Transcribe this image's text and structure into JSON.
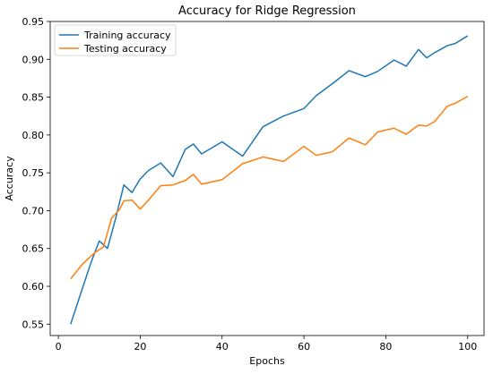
{
  "chart_data": {
    "type": "line",
    "title": "Accuracy for Ridge Regression",
    "xlabel": "Epochs",
    "ylabel": "Accuracy",
    "xlim": [
      -2,
      104
    ],
    "ylim": [
      0.535,
      0.95
    ],
    "x_ticks": [
      0,
      20,
      40,
      60,
      80,
      100
    ],
    "y_ticks": [
      0.55,
      0.6,
      0.65,
      0.7,
      0.75,
      0.8,
      0.85,
      0.9,
      0.95
    ],
    "legend_position": "top-left",
    "grid": false,
    "series": [
      {
        "name": "Training accuracy",
        "color": "#1f77b4",
        "x": [
          3,
          5,
          8,
          10,
          12,
          14,
          16,
          18,
          20,
          22,
          25,
          28,
          31,
          33,
          35,
          40,
          45,
          50,
          55,
          60,
          63,
          67,
          71,
          75,
          78,
          82,
          85,
          88,
          90,
          92,
          95,
          97,
          100
        ],
        "y": [
          0.55,
          0.583,
          0.632,
          0.66,
          0.65,
          0.69,
          0.734,
          0.724,
          0.742,
          0.753,
          0.763,
          0.745,
          0.781,
          0.788,
          0.775,
          0.791,
          0.772,
          0.811,
          0.825,
          0.835,
          0.852,
          0.868,
          0.885,
          0.877,
          0.884,
          0.899,
          0.891,
          0.913,
          0.902,
          0.909,
          0.918,
          0.921,
          0.931
        ]
      },
      {
        "name": "Testing accuracy",
        "color": "#ff7f0e",
        "x": [
          3,
          6,
          9,
          11,
          13,
          15,
          16,
          18,
          20,
          22,
          25,
          28,
          31,
          33,
          35,
          40,
          45,
          50,
          55,
          60,
          63,
          67,
          71,
          75,
          78,
          82,
          85,
          88,
          90,
          92,
          95,
          97,
          100
        ],
        "y": [
          0.61,
          0.63,
          0.645,
          0.652,
          0.69,
          0.702,
          0.713,
          0.714,
          0.702,
          0.714,
          0.733,
          0.734,
          0.74,
          0.748,
          0.735,
          0.741,
          0.762,
          0.771,
          0.765,
          0.785,
          0.773,
          0.778,
          0.796,
          0.787,
          0.804,
          0.809,
          0.801,
          0.813,
          0.812,
          0.818,
          0.838,
          0.842,
          0.851
        ]
      }
    ]
  }
}
